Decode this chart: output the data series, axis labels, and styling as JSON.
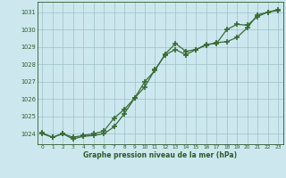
{
  "line1_x": [
    0,
    1,
    2,
    3,
    4,
    5,
    6,
    7,
    8,
    9,
    10,
    11,
    12,
    13,
    14,
    15,
    16,
    17,
    18,
    19,
    20,
    21,
    22,
    23
  ],
  "line1_y": [
    1024.0,
    1023.8,
    1024.0,
    1023.8,
    1023.9,
    1024.0,
    1024.15,
    1024.9,
    1025.4,
    1026.05,
    1026.7,
    1027.7,
    1028.55,
    1028.85,
    1028.55,
    1028.85,
    1029.15,
    1029.2,
    1030.0,
    1030.3,
    1030.25,
    1030.75,
    1031.0,
    1031.1
  ],
  "line2_x": [
    0,
    1,
    2,
    3,
    4,
    5,
    6,
    7,
    8,
    9,
    10,
    11,
    12,
    13,
    14,
    15,
    16,
    17,
    18,
    19,
    20,
    21,
    22,
    23
  ],
  "line2_y": [
    1024.05,
    1023.8,
    1024.0,
    1023.7,
    1023.85,
    1023.9,
    1024.0,
    1024.4,
    1025.15,
    1026.05,
    1027.0,
    1027.65,
    1028.6,
    1029.2,
    1028.75,
    1028.85,
    1029.1,
    1029.25,
    1029.3,
    1029.55,
    1030.1,
    1030.85,
    1031.0,
    1031.15
  ],
  "line_color": "#3a6b35",
  "marker": "+",
  "markersize": 4,
  "markeredgewidth": 1.2,
  "linewidth": 0.9,
  "bg_color": "#cce8ee",
  "grid_color": "#9dbfc8",
  "text_color": "#2d5a28",
  "ylabel_vals": [
    1024,
    1025,
    1026,
    1027,
    1028,
    1029,
    1030,
    1031
  ],
  "xlabel_vals": [
    0,
    1,
    2,
    3,
    4,
    5,
    6,
    7,
    8,
    9,
    10,
    11,
    12,
    13,
    14,
    15,
    16,
    17,
    18,
    19,
    20,
    21,
    22,
    23
  ],
  "xlabel": "Graphe pression niveau de la mer (hPa)",
  "ylim": [
    1023.4,
    1031.6
  ],
  "xlim": [
    -0.5,
    23.5
  ]
}
